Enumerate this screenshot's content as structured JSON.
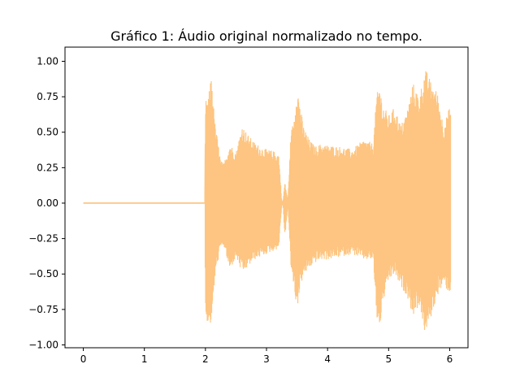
{
  "chart_data": {
    "type": "line",
    "title": "Gráfico 1: Áudio original normalizado no tempo.",
    "xlabel": "",
    "ylabel": "",
    "xlim": [
      -0.3,
      6.3
    ],
    "ylim": [
      -1.02,
      1.1
    ],
    "x_ticks": [
      "0",
      "1",
      "2",
      "3",
      "4",
      "5",
      "6"
    ],
    "y_ticks": [
      "1.00",
      "0.75",
      "0.50",
      "0.25",
      "0.00",
      "−0.25",
      "−0.50",
      "−0.75",
      "−1.00"
    ],
    "grid": false,
    "series": [
      {
        "color": "#fdc581",
        "envelope": {
          "x": [
            0.0,
            1.99,
            2.0,
            2.05,
            2.1,
            2.15,
            2.2,
            2.25,
            2.3,
            2.4,
            2.5,
            2.6,
            2.7,
            2.8,
            2.9,
            3.0,
            3.1,
            3.2,
            3.25,
            3.27,
            3.3,
            3.35,
            3.4,
            3.45,
            3.5,
            3.55,
            3.6,
            3.7,
            3.8,
            3.9,
            4.0,
            4.2,
            4.4,
            4.6,
            4.75,
            4.8,
            4.85,
            4.9,
            5.0,
            5.1,
            5.2,
            5.3,
            5.4,
            5.5,
            5.6,
            5.7,
            5.8,
            5.9,
            6.0,
            6.02
          ],
          "upper": [
            0.0,
            0.0,
            0.72,
            0.75,
            0.92,
            0.58,
            0.45,
            0.3,
            0.28,
            0.42,
            0.36,
            0.55,
            0.48,
            0.43,
            0.4,
            0.38,
            0.37,
            0.35,
            0.02,
            0.01,
            0.15,
            0.02,
            0.5,
            0.6,
            0.83,
            0.7,
            0.55,
            0.45,
            0.4,
            0.42,
            0.41,
            0.4,
            0.38,
            0.45,
            0.42,
            0.75,
            0.85,
            0.7,
            0.62,
            0.68,
            0.55,
            0.65,
            0.85,
            0.75,
            0.95,
            0.85,
            0.78,
            0.55,
            0.68,
            0.68
          ],
          "lower": [
            0.0,
            0.0,
            -0.82,
            -0.85,
            -0.86,
            -0.55,
            -0.42,
            -0.32,
            -0.3,
            -0.48,
            -0.38,
            -0.5,
            -0.45,
            -0.4,
            -0.38,
            -0.36,
            -0.34,
            -0.32,
            -0.02,
            -0.01,
            -0.25,
            -0.02,
            -0.45,
            -0.6,
            -0.75,
            -0.6,
            -0.52,
            -0.46,
            -0.42,
            -0.4,
            -0.4,
            -0.38,
            -0.36,
            -0.4,
            -0.4,
            -0.8,
            -0.9,
            -0.72,
            -0.55,
            -0.5,
            -0.6,
            -0.65,
            -0.8,
            -0.72,
            -0.93,
            -0.8,
            -0.65,
            -0.58,
            -0.64,
            -0.62
          ]
        }
      }
    ]
  }
}
